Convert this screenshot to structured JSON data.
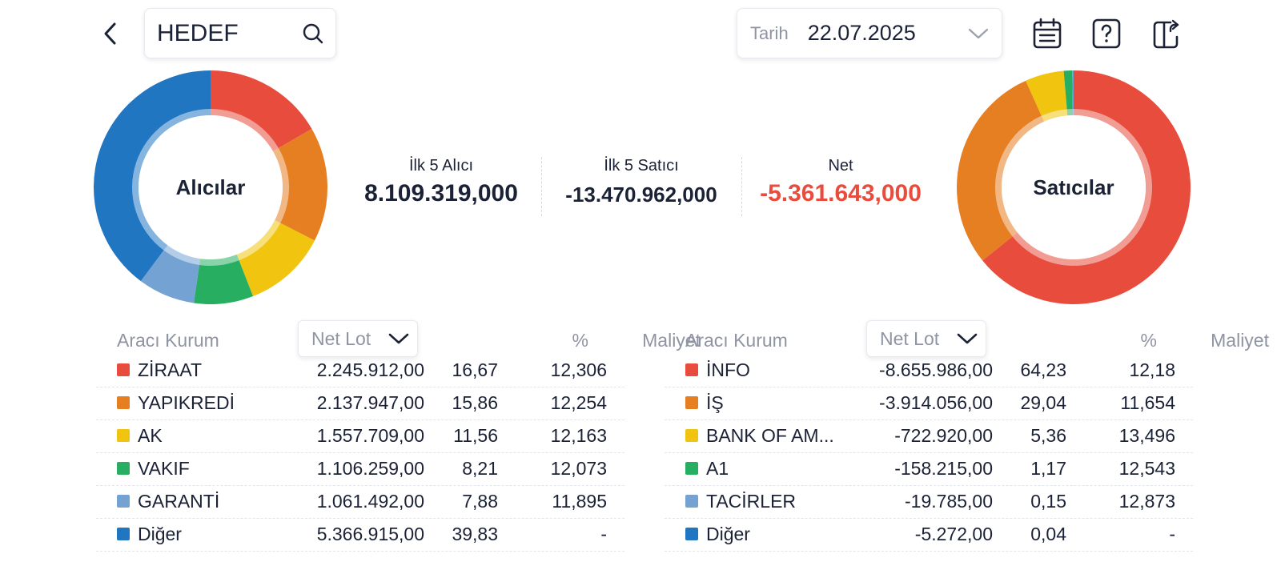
{
  "header": {
    "search": {
      "value": "HEDEF",
      "placeholder": ""
    },
    "date": {
      "label": "Tarih",
      "value": "22.07.2025"
    },
    "icons": [
      "back-icon",
      "search-icon",
      "chevron-down-icon",
      "calendar-icon",
      "help-icon",
      "export-icon"
    ]
  },
  "summary": {
    "buyers_label": "İlk 5 Alıcı",
    "buyers_value": "8.109.319,000",
    "sellers_label": "İlk 5 Satıcı",
    "sellers_value": "-13.470.962,000",
    "net_label": "Net",
    "net_value": "-5.361.643,000"
  },
  "buyers": {
    "title": "Alıcılar",
    "columns": {
      "broker": "Aracı Kurum",
      "sort": "Net Lot",
      "pct": "%",
      "cost": "Maliyet"
    },
    "rows": [
      {
        "name": "ZİRAAT",
        "lot": "2.245.912,00",
        "pct": "16,67",
        "pct_value": 16.67,
        "cost": "12,306",
        "color": "#e84c3d"
      },
      {
        "name": "YAPIKREDİ",
        "lot": "2.137.947,00",
        "pct": "15,86",
        "pct_value": 15.86,
        "cost": "12,254",
        "color": "#e67e22"
      },
      {
        "name": "AK",
        "lot": "1.557.709,00",
        "pct": "11,56",
        "pct_value": 11.56,
        "cost": "12,163",
        "color": "#f1c40f"
      },
      {
        "name": "VAKIF",
        "lot": "1.106.259,00",
        "pct": "8,21",
        "pct_value": 8.21,
        "cost": "12,073",
        "color": "#27ae60"
      },
      {
        "name": "GARANTİ",
        "lot": "1.061.492,00",
        "pct": "7,88",
        "pct_value": 7.88,
        "cost": "11,895",
        "color": "#74a2d3"
      },
      {
        "name": "Diğer",
        "lot": "5.366.915,00",
        "pct": "39,83",
        "pct_value": 39.83,
        "cost": "-",
        "color": "#2176c2"
      }
    ]
  },
  "sellers": {
    "title": "Satıcılar",
    "columns": {
      "broker": "Aracı Kurum",
      "sort": "Net Lot",
      "pct": "%",
      "cost": "Maliyet"
    },
    "rows": [
      {
        "name": "İNFO",
        "lot": "-8.655.986,00",
        "pct": "64,23",
        "pct_value": 64.23,
        "cost": "12,18",
        "color": "#e84c3d"
      },
      {
        "name": "İŞ",
        "lot": "-3.914.056,00",
        "pct": "29,04",
        "pct_value": 29.04,
        "cost": "11,654",
        "color": "#e67e22"
      },
      {
        "name": "BANK OF AM...",
        "lot": "-722.920,00",
        "pct": "5,36",
        "pct_value": 5.36,
        "cost": "13,496",
        "color": "#f1c40f"
      },
      {
        "name": "A1",
        "lot": "-158.215,00",
        "pct": "1,17",
        "pct_value": 1.17,
        "cost": "12,543",
        "color": "#27ae60"
      },
      {
        "name": "TACİRLER",
        "lot": "-19.785,00",
        "pct": "0,15",
        "pct_value": 0.15,
        "cost": "12,873",
        "color": "#74a2d3"
      },
      {
        "name": "Diğer",
        "lot": "-5.272,00",
        "pct": "0,04",
        "pct_value": 0.04,
        "cost": "-",
        "color": "#2176c2"
      }
    ]
  }
}
